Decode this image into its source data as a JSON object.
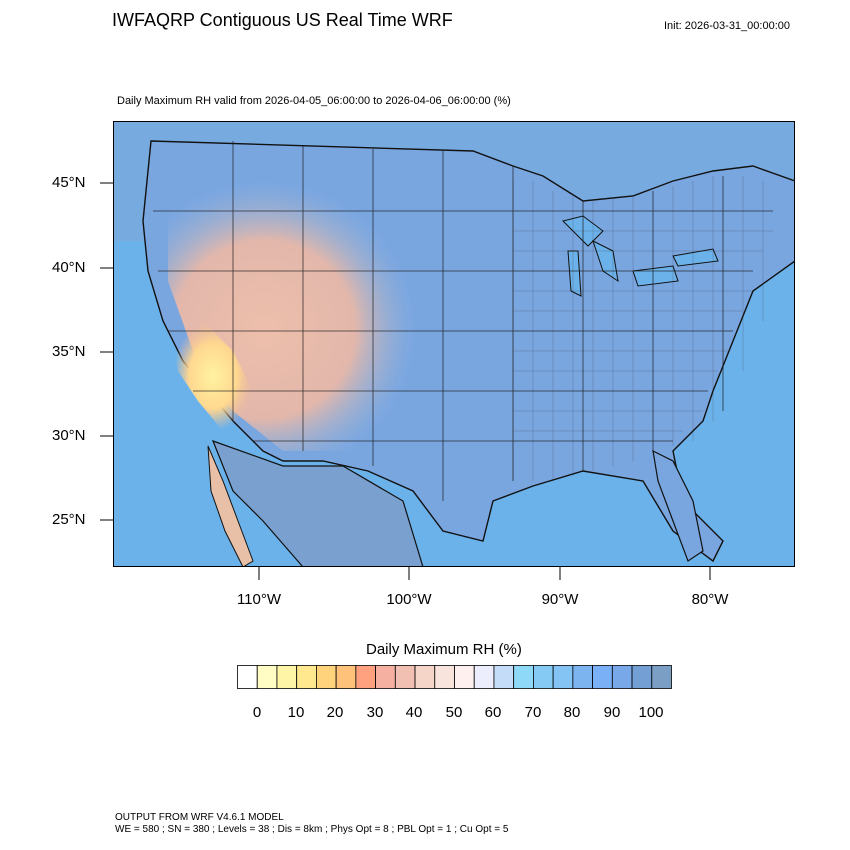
{
  "header": {
    "title": "IWFAQRP Contiguous US Real Time WRF",
    "init": "Init: 2026-03-31_00:00:00",
    "subtitle": "Daily Maximum RH valid from 2026-04-05_06:00:00 to 2026-04-06_06:00:00   (%)"
  },
  "axes": {
    "lat_labels": [
      "45°N",
      "40°N",
      "35°N",
      "30°N",
      "25°N"
    ],
    "lon_labels": [
      "110°W",
      "100°W",
      "90°W",
      "80°W"
    ]
  },
  "colorbar": {
    "title": "Daily Maximum RH  (%)",
    "tick_labels": [
      "0",
      "10",
      "20",
      "30",
      "40",
      "50",
      "60",
      "70",
      "80",
      "90",
      "100"
    ],
    "colors": [
      "#ffffff",
      "#fffcc4",
      "#fff5a6",
      "#ffe88e",
      "#ffd27c",
      "#ffc27a",
      "#ffa07e",
      "#f5b0a2",
      "#f2c0b2",
      "#f5d5c8",
      "#f8e4dc",
      "#fdf0ee",
      "#eceefe",
      "#c4dcf8",
      "#8ed8f8",
      "#84caf5",
      "#84c4f5",
      "#7cb4f0",
      "#7ab0f5",
      "#79a8e8",
      "#749fd4",
      "#7a9ec4"
    ]
  },
  "map": {
    "ocean_color": "#6cb2ea",
    "land_moist_color": "#7aa6e0",
    "land_dry_color": "#f0b8a0",
    "desert_color": "#ffec98"
  },
  "footer": {
    "line1": "OUTPUT FROM WRF V4.6.1 MODEL",
    "line2": "WE = 580 ; SN = 380 ; Levels = 38 ; Dis = 8km ; Phys Opt = 8 ; PBL Opt = 1 ; Cu Opt = 5"
  }
}
